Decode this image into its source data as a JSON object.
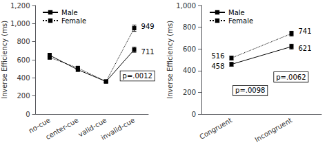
{
  "chart_data": [
    {
      "type": "line",
      "categories": [
        "no-cue",
        "center-cue",
        "valid-cue",
        "invalid-cue"
      ],
      "series": [
        {
          "name": "Male",
          "color": "#000000",
          "line_style": "solid",
          "marker": "square",
          "values": [
            650,
            490,
            360,
            711
          ],
          "errors": [
            22,
            18,
            15,
            28
          ]
        },
        {
          "name": "Female",
          "color": "#000000",
          "line_style": "dotted",
          "marker": "square",
          "values": [
            625,
            510,
            360,
            949
          ],
          "errors": [
            18,
            18,
            15,
            35
          ]
        }
      ],
      "ylim": [
        0,
        1200
      ],
      "yticks": [
        0,
        200,
        400,
        600,
        800,
        1000,
        1200
      ],
      "ylabel": "Inverse Efficiency (ms)",
      "grid": false,
      "legend": "upper left",
      "annotations": [
        {
          "text": "949",
          "series": "Female",
          "category": "invalid-cue"
        },
        {
          "text": "711",
          "series": "Male",
          "category": "invalid-cue"
        },
        {
          "text": "p=.0012"
        }
      ]
    },
    {
      "type": "line",
      "categories": [
        "Congruent",
        "Incongruent"
      ],
      "series": [
        {
          "name": "Male",
          "color": "#000000",
          "line_style": "solid",
          "marker": "square",
          "values": [
            458,
            621
          ],
          "errors": [
            18,
            22
          ]
        },
        {
          "name": "Female",
          "color": "#000000",
          "line_style": "dotted",
          "marker": "square",
          "values": [
            516,
            741
          ],
          "errors": [
            18,
            22
          ]
        }
      ],
      "ylim": [
        0,
        1000
      ],
      "yticks": [
        0,
        200,
        400,
        600,
        800,
        1000
      ],
      "ylabel": "Inverse Efficiency (ms)",
      "grid": false,
      "legend": "upper left",
      "annotations": [
        {
          "text": "516",
          "series": "Female",
          "category": "Congruent"
        },
        {
          "text": "458",
          "series": "Male",
          "category": "Congruent"
        },
        {
          "text": "741",
          "series": "Female",
          "category": "Incongruent"
        },
        {
          "text": "621",
          "series": "Male",
          "category": "Incongruent"
        },
        {
          "text": "p=.0098"
        },
        {
          "text": "p=.0062"
        }
      ]
    }
  ]
}
